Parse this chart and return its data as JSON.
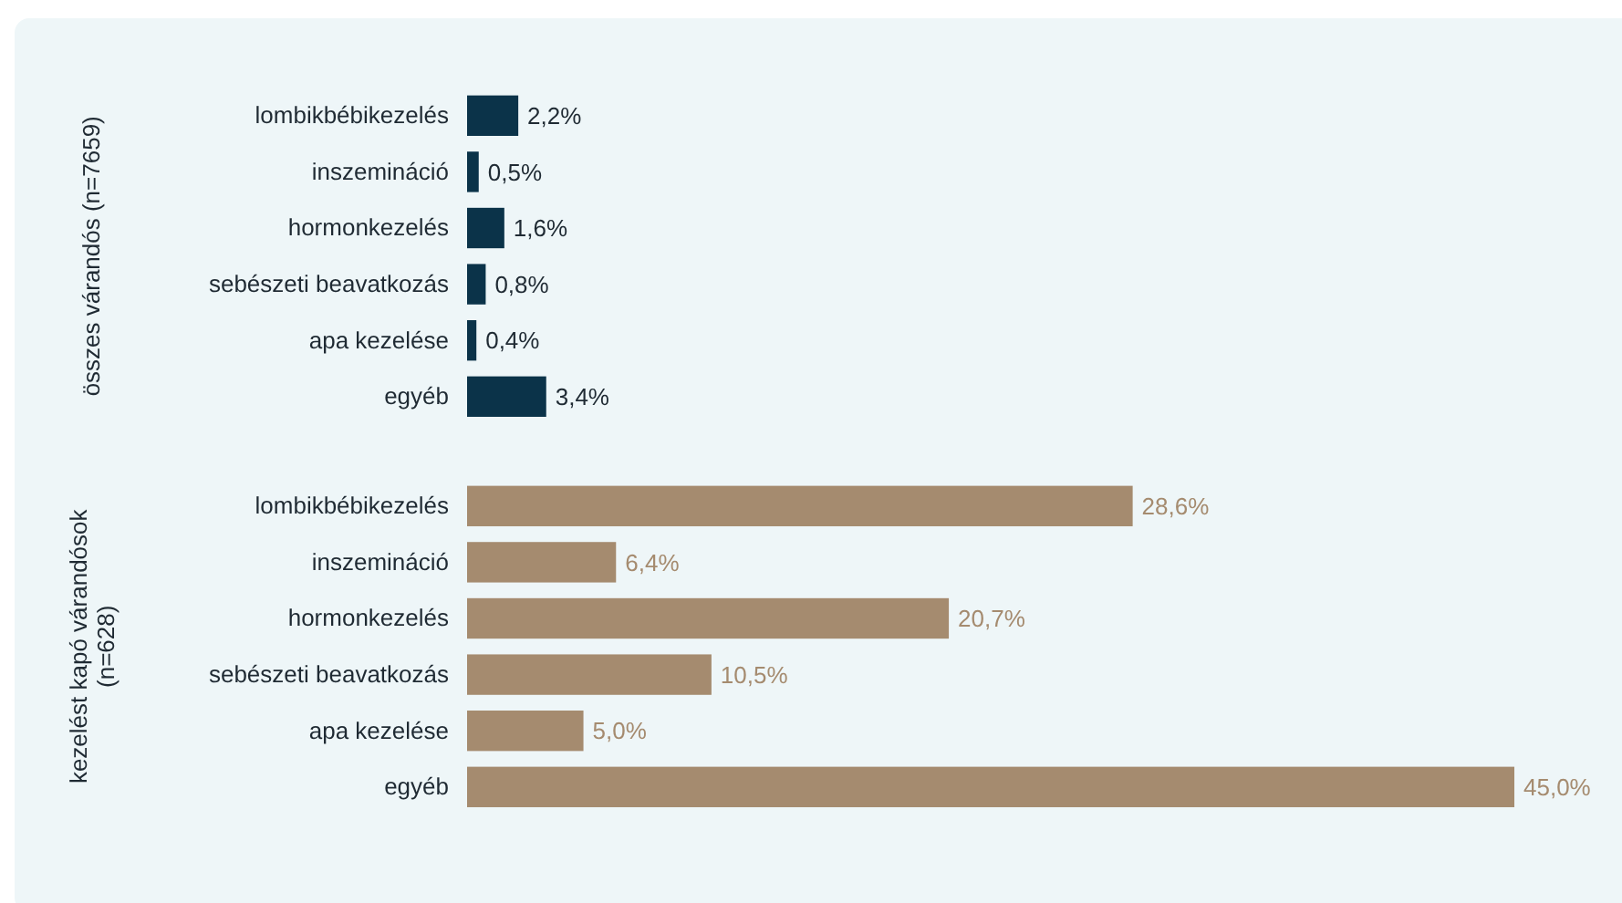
{
  "chart_data": [
    {
      "type": "bar",
      "orientation": "horizontal",
      "ylabel": "összes várandós (n=7659)",
      "categories": [
        "lombikbébikezelés",
        "inszemináció",
        "hormonkezelés",
        "sebészeti beavatkozás",
        "apa kezelése",
        "egyéb"
      ],
      "values": [
        2.2,
        0.5,
        1.6,
        0.8,
        0.4,
        3.4
      ],
      "color": "#0b3349",
      "value_labels": [
        "2,2%",
        "0,5%",
        "1,6%",
        "0,8%",
        "0,4%",
        "3,4%"
      ]
    },
    {
      "type": "bar",
      "orientation": "horizontal",
      "ylabel": "kezelést kapó várandósok (n=628)",
      "categories": [
        "lombikbébikezelés",
        "inszemináció",
        "hormonkezelés",
        "sebészeti beavatkozás",
        "apa kezelése",
        "egyéb"
      ],
      "values": [
        28.6,
        6.4,
        20.7,
        10.5,
        5.0,
        45.0
      ],
      "color": "#a58b6f",
      "value_labels": [
        "28,6%",
        "6,4%",
        "20,7%",
        "10,5%",
        "5,0%",
        "45,0%"
      ]
    }
  ]
}
